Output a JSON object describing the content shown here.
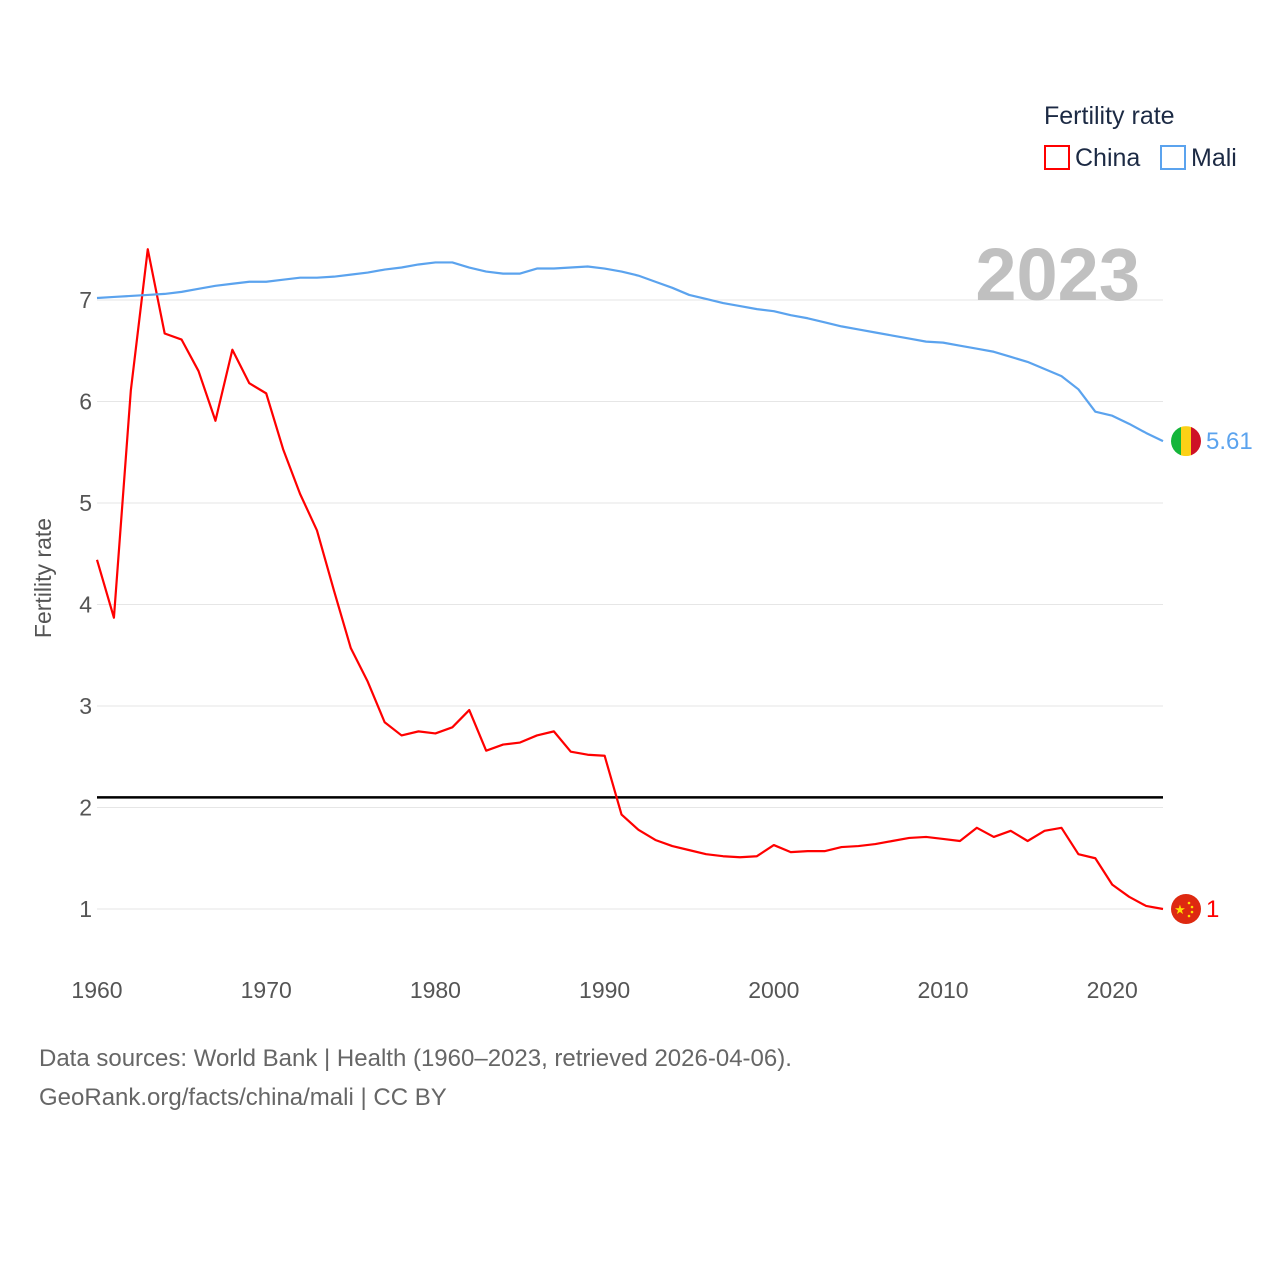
{
  "chart_data": {
    "type": "line",
    "ylabel": "Fertility rate",
    "xlabel": "",
    "legend_title": "Fertility rate",
    "legend_position": "top-right",
    "year_label": "2023",
    "xlim": [
      1960,
      2023
    ],
    "ylim": [
      0.5,
      7.6
    ],
    "x_ticks": [
      "1960",
      "1970",
      "1980",
      "1990",
      "2000",
      "2010",
      "2020"
    ],
    "y_ticks": [
      "1",
      "2",
      "3",
      "4",
      "5",
      "6",
      "7"
    ],
    "reference_line": 2.1,
    "x": [
      1960,
      1961,
      1962,
      1963,
      1964,
      1965,
      1966,
      1967,
      1968,
      1969,
      1970,
      1971,
      1972,
      1973,
      1974,
      1975,
      1976,
      1977,
      1978,
      1979,
      1980,
      1981,
      1982,
      1983,
      1984,
      1985,
      1986,
      1987,
      1988,
      1989,
      1990,
      1991,
      1992,
      1993,
      1994,
      1995,
      1996,
      1997,
      1998,
      1999,
      2000,
      2001,
      2002,
      2003,
      2004,
      2005,
      2006,
      2007,
      2008,
      2009,
      2010,
      2011,
      2012,
      2013,
      2014,
      2015,
      2016,
      2017,
      2018,
      2019,
      2020,
      2021,
      2022,
      2023
    ],
    "series": [
      {
        "name": "China",
        "color": "#ff0000",
        "end_label": "1",
        "values": [
          4.44,
          3.87,
          6.11,
          7.5,
          6.67,
          6.61,
          6.3,
          5.81,
          6.51,
          6.18,
          6.08,
          5.53,
          5.09,
          4.73,
          4.14,
          3.57,
          3.24,
          2.84,
          2.71,
          2.75,
          2.73,
          2.79,
          2.96,
          2.56,
          2.62,
          2.64,
          2.71,
          2.75,
          2.55,
          2.52,
          2.51,
          1.93,
          1.78,
          1.68,
          1.62,
          1.58,
          1.54,
          1.52,
          1.51,
          1.52,
          1.63,
          1.56,
          1.57,
          1.57,
          1.61,
          1.62,
          1.64,
          1.67,
          1.7,
          1.71,
          1.69,
          1.67,
          1.8,
          1.71,
          1.77,
          1.67,
          1.77,
          1.8,
          1.54,
          1.5,
          1.24,
          1.12,
          1.03,
          1.0
        ]
      },
      {
        "name": "Mali",
        "color": "#5ba3ee",
        "end_label": "5.61",
        "values": [
          7.02,
          7.03,
          7.04,
          7.05,
          7.06,
          7.08,
          7.11,
          7.14,
          7.16,
          7.18,
          7.18,
          7.2,
          7.22,
          7.22,
          7.23,
          7.25,
          7.27,
          7.3,
          7.32,
          7.35,
          7.37,
          7.37,
          7.32,
          7.28,
          7.26,
          7.26,
          7.31,
          7.31,
          7.32,
          7.33,
          7.31,
          7.28,
          7.24,
          7.18,
          7.12,
          7.05,
          7.01,
          6.97,
          6.94,
          6.91,
          6.89,
          6.85,
          6.82,
          6.78,
          6.74,
          6.71,
          6.68,
          6.65,
          6.62,
          6.59,
          6.58,
          6.55,
          6.52,
          6.49,
          6.44,
          6.39,
          6.32,
          6.25,
          6.12,
          5.9,
          5.86,
          5.78,
          5.69,
          5.61
        ]
      }
    ]
  },
  "footer": {
    "line1": "Data sources: World Bank | Health (1960–2023, retrieved 2026-04-06).",
    "line2": "GeoRank.org/facts/china/mali | CC BY"
  }
}
